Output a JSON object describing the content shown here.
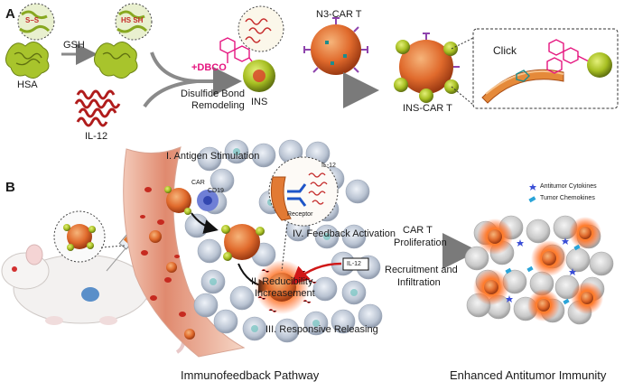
{
  "panel_a": {
    "letter": "A",
    "disulfide_label": "S–S",
    "free_thiol_label": "HS SH",
    "gsh_label": "GSH",
    "hsa_label": "HSA",
    "il12_label": "IL-12",
    "dbco_label": "+DBCO",
    "remodel_line1": "Disulfide Bond",
    "remodel_line2": "Remodeling",
    "ins_label": "INS",
    "n3_car_t_label": "N3-CAR T",
    "ins_car_t_label": "INS-CAR T",
    "click_label": "Click"
  },
  "panel_b": {
    "letter": "B",
    "step1": "I. Antigen Stimulation",
    "car_label": "CAR",
    "cd19_label": "CD19",
    "step2_line1": "II. Reducibility",
    "step2_line2": "Increasement",
    "step3": "III. Responsive Releasing",
    "step4": "IV. Feedback Activation",
    "inset_il12": "IL-12",
    "receptor_label": "Receptor",
    "il12_box": "IL-12",
    "arrow_top_line1": "CAR T",
    "arrow_top_line2": "Proliferation",
    "arrow_bottom_line1": "Recruitment and",
    "arrow_bottom_line2": "Infiltration",
    "legend_cytokines": "Antitumor Cytokines",
    "legend_chemokines": "Tumor Chemokines",
    "caption_left": "Immunofeedback Pathway",
    "caption_right": "Enhanced Antitumor Immunity"
  },
  "colors": {
    "hsa_green": "#9cc02a",
    "il12_red": "#d42a2a",
    "car_t_orange": "#e06a2c",
    "ins_olive": "#8fa21a",
    "dbco_pink": "#e5157f",
    "vessel_red": "#c83a2e",
    "tumor_gray": "#b9c3d2",
    "arrow_gray": "#8a8a8a",
    "cytokine_blue": "#3b4fd6",
    "chemokine_cyan": "#2aa4d8"
  }
}
